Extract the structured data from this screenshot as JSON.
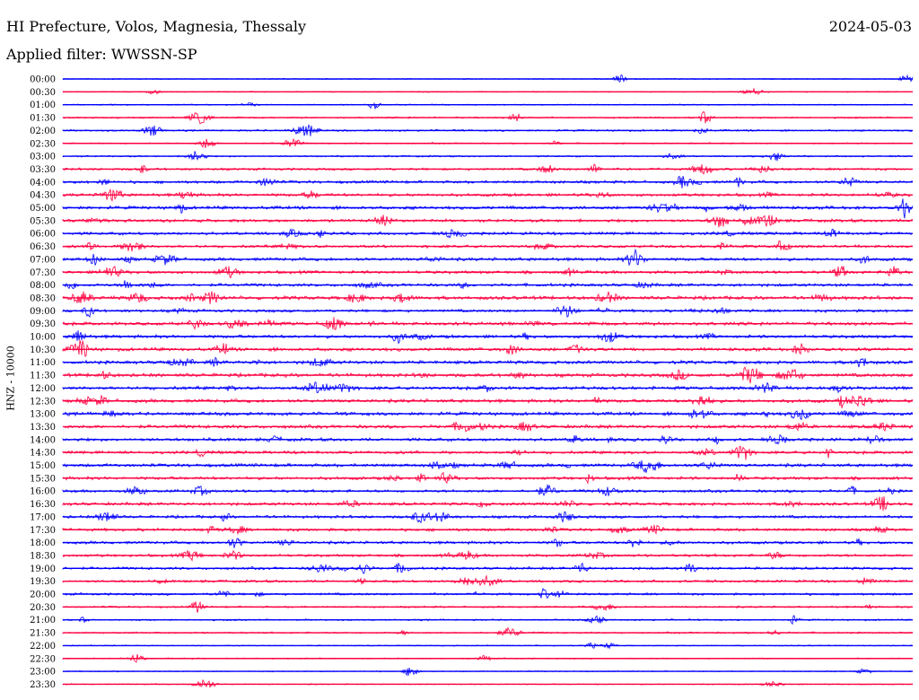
{
  "header": {
    "station": "HI Prefecture, Volos, Magnesia, Thessaly",
    "date": "2024-05-03",
    "filter": "Applied filter: WWSSN-SP"
  },
  "chart_data": {
    "type": "line",
    "ylabel": "HNZ - 10000",
    "rows": [
      "00:00",
      "00:30",
      "01:00",
      "01:30",
      "02:00",
      "02:30",
      "03:00",
      "03:30",
      "04:00",
      "04:30",
      "05:00",
      "05:30",
      "06:00",
      "06:30",
      "07:00",
      "07:30",
      "08:00",
      "08:30",
      "09:00",
      "09:30",
      "10:00",
      "10:30",
      "11:00",
      "11:30",
      "12:00",
      "12:30",
      "13:00",
      "13:30",
      "14:00",
      "14:30",
      "15:00",
      "15:30",
      "16:00",
      "16:30",
      "17:00",
      "17:30",
      "18:00",
      "18:30",
      "19:00",
      "19:30",
      "20:00",
      "20:30",
      "21:00",
      "21:30",
      "22:00",
      "22:30",
      "23:00",
      "23:30"
    ],
    "series_colors": [
      "#0000ff",
      "#ff0040"
    ],
    "noise_level": [
      0.6,
      0.6,
      0.7,
      0.9,
      1.0,
      0.8,
      0.9,
      1.3,
      1.6,
      1.7,
      1.8,
      1.7,
      1.7,
      1.6,
      1.8,
      1.7,
      1.7,
      2.0,
      1.6,
      1.9,
      1.8,
      1.9,
      1.9,
      2.0,
      1.9,
      1.9,
      1.9,
      1.9,
      1.8,
      1.7,
      1.8,
      1.7,
      1.6,
      1.7,
      1.6,
      1.6,
      1.6,
      1.5,
      1.5,
      1.4,
      1.3,
      1.0,
      0.9,
      0.9,
      0.6,
      0.7,
      0.6,
      0.6
    ],
    "grid": false
  }
}
